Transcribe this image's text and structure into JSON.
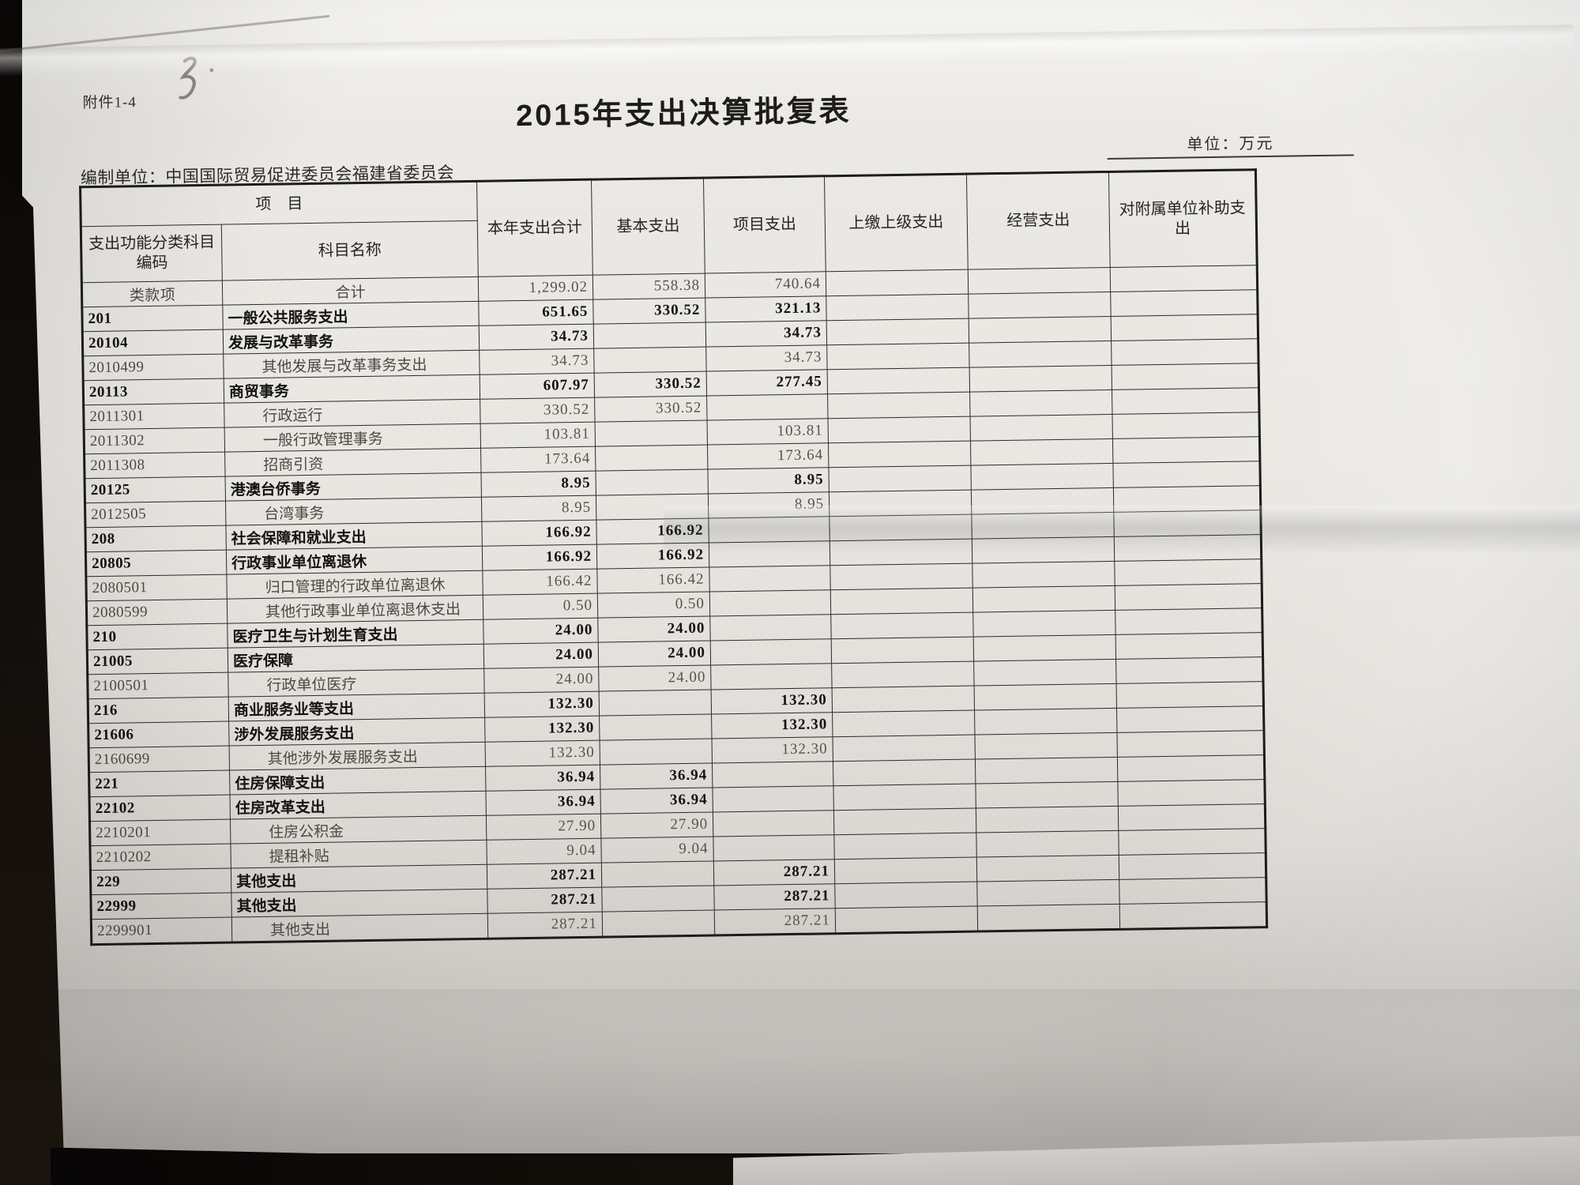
{
  "document": {
    "attachment_label": "附件1-4",
    "handwritten_mark": "3",
    "title": "2015年支出决算批复表",
    "unit_label": "单位：万元",
    "prepared_by": "编制单位：中国国际贸易促进委员会福建省委员会"
  },
  "table": {
    "header": {
      "item_group": "项　目",
      "code": "支出功能分类科目编码",
      "subject_name": "科目名称",
      "category_row_label": "类款项",
      "total_this_year": "本年支出合计",
      "basic": "基本支出",
      "project": "项目支出",
      "paid_to_higher": "上缴上级支出",
      "operating": "经营支出",
      "subsidy_to_affiliates": "对附属单位补助支出"
    },
    "rows": [
      {
        "code": "类款项",
        "name": "合计",
        "total": "1,299.02",
        "basic": "558.38",
        "project": "740.64",
        "paid": "",
        "oper": "",
        "subsidy": "",
        "weight": "light",
        "summary": true
      },
      {
        "code": "201",
        "name": "一般公共服务支出",
        "total": "651.65",
        "basic": "330.52",
        "project": "321.13",
        "paid": "",
        "oper": "",
        "subsidy": "",
        "weight": "bold"
      },
      {
        "code": "20104",
        "name": "发展与改革事务",
        "total": "34.73",
        "basic": "",
        "project": "34.73",
        "paid": "",
        "oper": "",
        "subsidy": "",
        "weight": "bold"
      },
      {
        "code": "2010499",
        "name": "其他发展与改革事务支出",
        "total": "34.73",
        "basic": "",
        "project": "34.73",
        "paid": "",
        "oper": "",
        "subsidy": "",
        "weight": "light",
        "indent": true
      },
      {
        "code": "20113",
        "name": "商贸事务",
        "total": "607.97",
        "basic": "330.52",
        "project": "277.45",
        "paid": "",
        "oper": "",
        "subsidy": "",
        "weight": "bold"
      },
      {
        "code": "2011301",
        "name": "行政运行",
        "total": "330.52",
        "basic": "330.52",
        "project": "",
        "paid": "",
        "oper": "",
        "subsidy": "",
        "weight": "light",
        "indent": true
      },
      {
        "code": "2011302",
        "name": "一般行政管理事务",
        "total": "103.81",
        "basic": "",
        "project": "103.81",
        "paid": "",
        "oper": "",
        "subsidy": "",
        "weight": "light",
        "indent": true
      },
      {
        "code": "2011308",
        "name": "招商引资",
        "total": "173.64",
        "basic": "",
        "project": "173.64",
        "paid": "",
        "oper": "",
        "subsidy": "",
        "weight": "light",
        "indent": true
      },
      {
        "code": "20125",
        "name": "港澳台侨事务",
        "total": "8.95",
        "basic": "",
        "project": "8.95",
        "paid": "",
        "oper": "",
        "subsidy": "",
        "weight": "bold"
      },
      {
        "code": "2012505",
        "name": "台湾事务",
        "total": "8.95",
        "basic": "",
        "project": "8.95",
        "paid": "",
        "oper": "",
        "subsidy": "",
        "weight": "light",
        "indent": true
      },
      {
        "code": "208",
        "name": "社会保障和就业支出",
        "total": "166.92",
        "basic": "166.92",
        "project": "",
        "paid": "",
        "oper": "",
        "subsidy": "",
        "weight": "bold"
      },
      {
        "code": "20805",
        "name": "行政事业单位离退休",
        "total": "166.92",
        "basic": "166.92",
        "project": "",
        "paid": "",
        "oper": "",
        "subsidy": "",
        "weight": "bold"
      },
      {
        "code": "2080501",
        "name": "归口管理的行政单位离退休",
        "total": "166.42",
        "basic": "166.42",
        "project": "",
        "paid": "",
        "oper": "",
        "subsidy": "",
        "weight": "light",
        "indent": true
      },
      {
        "code": "2080599",
        "name": "其他行政事业单位离退休支出",
        "total": "0.50",
        "basic": "0.50",
        "project": "",
        "paid": "",
        "oper": "",
        "subsidy": "",
        "weight": "light",
        "indent": true
      },
      {
        "code": "210",
        "name": "医疗卫生与计划生育支出",
        "total": "24.00",
        "basic": "24.00",
        "project": "",
        "paid": "",
        "oper": "",
        "subsidy": "",
        "weight": "bold"
      },
      {
        "code": "21005",
        "name": "医疗保障",
        "total": "24.00",
        "basic": "24.00",
        "project": "",
        "paid": "",
        "oper": "",
        "subsidy": "",
        "weight": "bold"
      },
      {
        "code": "2100501",
        "name": "行政单位医疗",
        "total": "24.00",
        "basic": "24.00",
        "project": "",
        "paid": "",
        "oper": "",
        "subsidy": "",
        "weight": "light",
        "indent": true
      },
      {
        "code": "216",
        "name": "商业服务业等支出",
        "total": "132.30",
        "basic": "",
        "project": "132.30",
        "paid": "",
        "oper": "",
        "subsidy": "",
        "weight": "bold"
      },
      {
        "code": "21606",
        "name": "涉外发展服务支出",
        "total": "132.30",
        "basic": "",
        "project": "132.30",
        "paid": "",
        "oper": "",
        "subsidy": "",
        "weight": "bold"
      },
      {
        "code": "2160699",
        "name": "其他涉外发展服务支出",
        "total": "132.30",
        "basic": "",
        "project": "132.30",
        "paid": "",
        "oper": "",
        "subsidy": "",
        "weight": "light",
        "indent": true
      },
      {
        "code": "221",
        "name": "住房保障支出",
        "total": "36.94",
        "basic": "36.94",
        "project": "",
        "paid": "",
        "oper": "",
        "subsidy": "",
        "weight": "bold"
      },
      {
        "code": "22102",
        "name": "住房改革支出",
        "total": "36.94",
        "basic": "36.94",
        "project": "",
        "paid": "",
        "oper": "",
        "subsidy": "",
        "weight": "bold"
      },
      {
        "code": "2210201",
        "name": "住房公积金",
        "total": "27.90",
        "basic": "27.90",
        "project": "",
        "paid": "",
        "oper": "",
        "subsidy": "",
        "weight": "light",
        "indent": true
      },
      {
        "code": "2210202",
        "name": "提租补贴",
        "total": "9.04",
        "basic": "9.04",
        "project": "",
        "paid": "",
        "oper": "",
        "subsidy": "",
        "weight": "light",
        "indent": true
      },
      {
        "code": "229",
        "name": "其他支出",
        "total": "287.21",
        "basic": "",
        "project": "287.21",
        "paid": "",
        "oper": "",
        "subsidy": "",
        "weight": "bold"
      },
      {
        "code": "22999",
        "name": "其他支出",
        "total": "287.21",
        "basic": "",
        "project": "287.21",
        "paid": "",
        "oper": "",
        "subsidy": "",
        "weight": "bold"
      },
      {
        "code": "2299901",
        "name": "其他支出",
        "total": "287.21",
        "basic": "",
        "project": "287.21",
        "paid": "",
        "oper": "",
        "subsidy": "",
        "weight": "light",
        "indent": true
      }
    ]
  },
  "colors": {
    "background": "#120f0c",
    "paper": "#e9e7e2",
    "ink": "#1d1c18",
    "ink_light": "#504d47",
    "grid_line": "#2c2b28",
    "pencil": "#8b867e"
  }
}
